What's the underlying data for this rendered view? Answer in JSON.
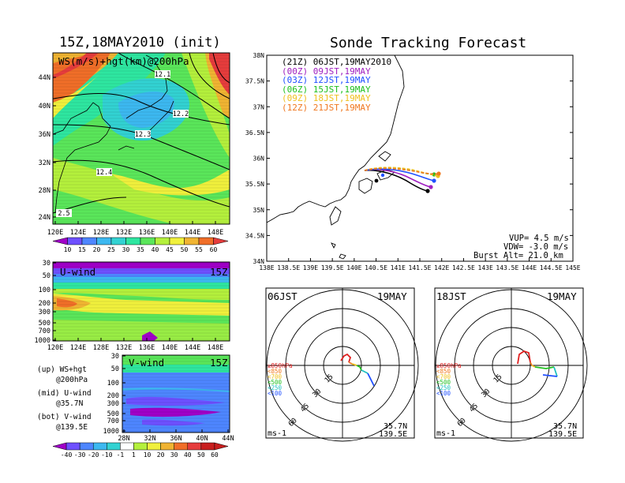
{
  "left_title": "15Z,18MAY2010 (init)",
  "right_title": "Sonde Tracking Forecast",
  "colors": {
    "shade_scale": [
      "#a000c8",
      "#6e50ff",
      "#4e86ff",
      "#3cb8f0",
      "#32d2d2",
      "#2ee6a0",
      "#5ae65a",
      "#b4f03c",
      "#f0f03c",
      "#f0b432",
      "#f06e28",
      "#e63c3c",
      "#c81e1e"
    ],
    "track": {
      "21Z": "#000000",
      "00Z": "#a020c0",
      "03Z": "#2050ff",
      "06Z": "#20c020",
      "09Z": "#f0c020",
      "12Z": "#f07820"
    }
  },
  "map_panel": {
    "label": "WS(m/s)+hgt(km)@200hPa",
    "lat_ticks": [
      "44N",
      "40N",
      "36N",
      "32N",
      "28N",
      "24N"
    ],
    "lon_ticks": [
      "120E",
      "124E",
      "128E",
      "132E",
      "136E",
      "140E",
      "144E",
      "148E"
    ],
    "contours": [
      "12.1",
      "12.2",
      "12.3",
      "12.4",
      "2.5"
    ],
    "colorbar_ticks": [
      "10",
      "15",
      "20",
      "25",
      "30",
      "35",
      "40",
      "45",
      "50",
      "55",
      "60"
    ]
  },
  "u_panel": {
    "label": "U-wind",
    "time": "15Z",
    "p_ticks": [
      "30",
      "50",
      "100",
      "200",
      "300",
      "500",
      "700",
      "1000"
    ],
    "lon_ticks": [
      "120E",
      "124E",
      "128E",
      "132E",
      "136E",
      "140E",
      "144E",
      "148E"
    ]
  },
  "v_panel": {
    "label": "V-wind",
    "time": "15Z",
    "p_ticks": [
      "30",
      "50",
      "100",
      "200",
      "300",
      "500",
      "700",
      "1000"
    ],
    "lat_ticks": [
      "28N",
      "32N",
      "36N",
      "40N",
      "44N"
    ],
    "colorbar_ticks": [
      "-40",
      "-30",
      "-20",
      "-10",
      "-1",
      "1",
      "10",
      "20",
      "30",
      "40",
      "50",
      "60"
    ]
  },
  "notes": {
    "up": [
      "(up) WS+hgt",
      "@200hPa"
    ],
    "mid": [
      "(mid) U-wind",
      "@35.7N"
    ],
    "bot": [
      "(bot) V-wind",
      "@139.5E"
    ]
  },
  "tracking": {
    "lat_ticks": [
      "38N",
      "37.5N",
      "37N",
      "36.5N",
      "36N",
      "35.5N",
      "35N",
      "34.5N",
      "34N"
    ],
    "lon_ticks": [
      "138E",
      "138.5E",
      "139E",
      "139.5E",
      "140E",
      "140.5E",
      "141E",
      "141.5E",
      "142E",
      "142.5E",
      "143E",
      "143.5E",
      "144E",
      "144.5E",
      "145E"
    ],
    "legend": [
      {
        "key": "21Z",
        "text": "(21Z) 06JST,19MAY2010"
      },
      {
        "key": "00Z",
        "text": "(00Z) 09JST,19MAY"
      },
      {
        "key": "03Z",
        "text": "(03Z) 12JST,19MAY"
      },
      {
        "key": "06Z",
        "text": "(06Z) 15JST,19MAY"
      },
      {
        "key": "09Z",
        "text": "(09Z) 18JST,19MAY"
      },
      {
        "key": "12Z",
        "text": "(12Z) 21JST,19MAY"
      }
    ],
    "params": [
      "VUP= 4.5 m/s",
      "VDW= -3.0 m/s",
      "Burst Alt= 21.0 km"
    ]
  },
  "hodographs": [
    {
      "time_label": "06JST",
      "date_label": "19MAY",
      "loc1": "35.7N",
      "loc2": "139.5E",
      "unit": "ms-1"
    },
    {
      "time_label": "18JST",
      "date_label": "19MAY",
      "loc1": "35.7N",
      "loc2": "139.5E",
      "unit": "ms-1"
    }
  ],
  "hodo_common": {
    "ring_labels": [
      "15",
      "30",
      "45",
      "60"
    ],
    "levels": [
      {
        "text": "≥850hPa",
        "color": "#e02020"
      },
      {
        "text": "<850",
        "color": "#f07820"
      },
      {
        "text": "<700",
        "color": "#f0c020"
      },
      {
        "text": "<500",
        "color": "#20c020"
      },
      {
        "text": "<250",
        "color": "#20c0c0"
      },
      {
        "text": "<100",
        "color": "#2050ff"
      }
    ]
  }
}
